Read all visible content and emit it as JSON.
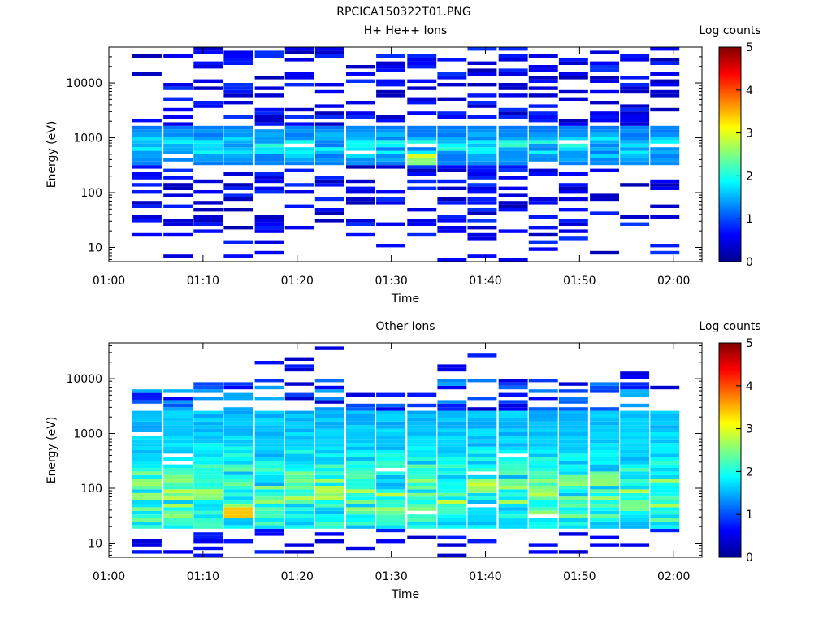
{
  "file_title": "RPCICA150322T01.PNG",
  "chart_data": [
    {
      "type": "heatmap",
      "title": "H+ He++ Ions",
      "xlabel": "Time",
      "ylabel": "Energy (eV)",
      "x_ticks": [
        "01:00",
        "01:10",
        "01:20",
        "01:30",
        "01:40",
        "01:50",
        "02:00"
      ],
      "x_range_minutes": [
        0,
        63
      ],
      "y_scale": "log",
      "y_ticks": [
        "10",
        "100",
        "1000",
        "10000"
      ],
      "y_range": [
        5.5,
        45000
      ],
      "colorbar_label": "Log counts",
      "colorbar_ticks": [
        "0",
        "1",
        "2",
        "3",
        "4",
        "5"
      ],
      "colorbar_range": [
        0,
        5
      ],
      "grid": false,
      "time_bins_start_minutes": [
        2.5,
        5.8,
        9.0,
        12.2,
        15.5,
        18.7,
        21.9,
        25.2,
        28.4,
        31.7,
        34.9,
        38.1,
        41.4,
        44.6,
        47.8,
        51.1,
        54.3,
        57.5
      ],
      "bin_width_minutes": 3.1,
      "description_of_values": "mostly 0-1 log counts across 10 eV-40 keV; band of 1.5-2.5 between 300 and 1500 eV; peak ~2.8 at ~400 eV near 01:30",
      "band_center_eV": 700,
      "band_peak": 2.8
    },
    {
      "type": "heatmap",
      "title": "Other Ions",
      "xlabel": "Time",
      "ylabel": "Energy (eV)",
      "x_ticks": [
        "01:00",
        "01:10",
        "01:20",
        "01:30",
        "01:40",
        "01:50",
        "02:00"
      ],
      "x_range_minutes": [
        0,
        63
      ],
      "y_scale": "log",
      "y_ticks": [
        "10",
        "100",
        "1000",
        "10000"
      ],
      "y_range": [
        5.5,
        45000
      ],
      "colorbar_label": "Log counts",
      "colorbar_ticks": [
        "0",
        "1",
        "2",
        "3",
        "4",
        "5"
      ],
      "colorbar_range": [
        0,
        5
      ],
      "grid": false,
      "time_bins_start_minutes": [
        2.5,
        5.8,
        9.0,
        12.2,
        15.5,
        18.7,
        21.9,
        25.2,
        28.4,
        31.7,
        34.9,
        38.1,
        41.4,
        44.6,
        47.8,
        51.1,
        54.3,
        57.5
      ],
      "bin_width_minutes": 3.1,
      "description_of_values": "broad band 20-3000 eV with values 1.5-3; peak ~3.5 near 35 eV around 01:13",
      "band_center_eV": 80,
      "band_peak": 3.5
    }
  ]
}
